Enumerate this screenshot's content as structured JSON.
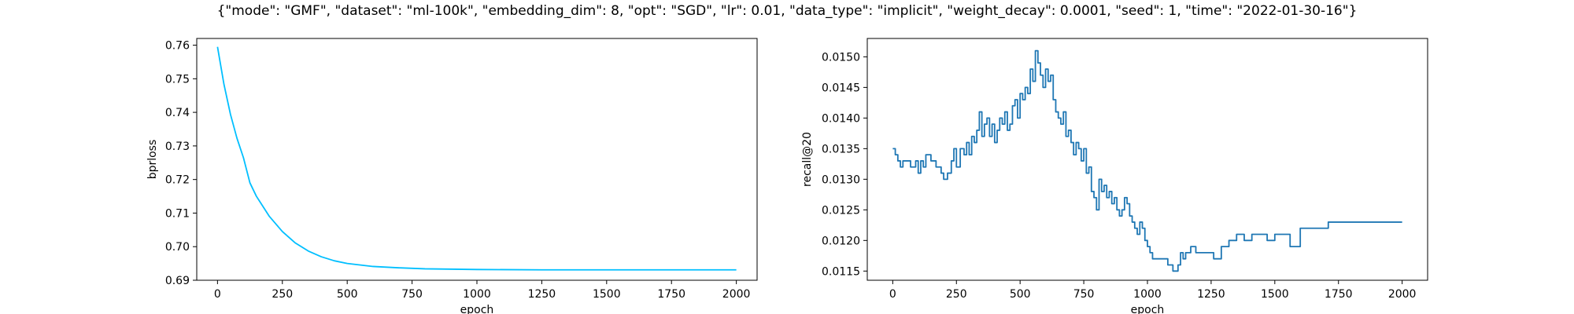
{
  "suptitle": "{\"mode\": \"GMF\", \"dataset\": \"ml-100k\", \"embedding_dim\": 8, \"opt\": \"SGD\", \"lr\": 0.01, \"data_type\": \"implicit\", \"weight_decay\": 0.0001, \"seed\": 1, \"time\": \"2022-01-30-16\"}",
  "chart_data": [
    {
      "type": "line",
      "title": "",
      "xlabel": "epoch",
      "ylabel": "bprloss",
      "xlim": [
        -80,
        2080
      ],
      "ylim": [
        0.69,
        0.762
      ],
      "xticks": [
        0,
        250,
        500,
        750,
        1000,
        1250,
        1500,
        1750,
        2000
      ],
      "xtick_labels": [
        "0",
        "250",
        "500",
        "750",
        "1000",
        "1250",
        "1500",
        "1750",
        "2000"
      ],
      "yticks": [
        0.69,
        0.7,
        0.71,
        0.72,
        0.73,
        0.74,
        0.75,
        0.76
      ],
      "ytick_labels": [
        "0.69",
        "0.70",
        "0.71",
        "0.72",
        "0.73",
        "0.74",
        "0.75",
        "0.76"
      ],
      "grid": false,
      "series": [
        {
          "name": "bprloss",
          "color": "#00bfff",
          "x": [
            0,
            25,
            50,
            75,
            100,
            125,
            150,
            200,
            250,
            300,
            350,
            400,
            450,
            500,
            600,
            700,
            800,
            1000,
            1250,
            1500,
            1750,
            2000
          ],
          "y": [
            0.7595,
            0.7483,
            0.7394,
            0.7323,
            0.7265,
            0.719,
            0.715,
            0.709,
            0.7045,
            0.7011,
            0.6987,
            0.697,
            0.6958,
            0.695,
            0.6941,
            0.6937,
            0.6934,
            0.6932,
            0.6931,
            0.6931,
            0.6931,
            0.6931
          ]
        }
      ]
    },
    {
      "type": "line",
      "title": "",
      "xlabel": "epoch",
      "ylabel": "recall@20",
      "xlim": [
        -100,
        2100
      ],
      "ylim": [
        0.01135,
        0.0153
      ],
      "xticks": [
        0,
        250,
        500,
        750,
        1000,
        1250,
        1500,
        1750,
        2000
      ],
      "xtick_labels": [
        "0",
        "250",
        "500",
        "750",
        "1000",
        "1250",
        "1500",
        "1750",
        "2000"
      ],
      "yticks": [
        0.0115,
        0.012,
        0.0125,
        0.013,
        0.0135,
        0.014,
        0.0145,
        0.015
      ],
      "ytick_labels": [
        "0.0115",
        "0.0120",
        "0.0125",
        "0.0130",
        "0.0135",
        "0.0140",
        "0.0145",
        "0.0150"
      ],
      "grid": false,
      "series": [
        {
          "name": "recall@20",
          "color": "#1f77b4",
          "x": [
            0,
            10,
            20,
            30,
            40,
            55,
            70,
            90,
            100,
            110,
            120,
            130,
            150,
            170,
            190,
            200,
            215,
            230,
            240,
            250,
            265,
            280,
            290,
            300,
            310,
            320,
            330,
            340,
            350,
            360,
            370,
            380,
            390,
            400,
            410,
            420,
            430,
            440,
            450,
            460,
            470,
            480,
            490,
            500,
            510,
            520,
            530,
            540,
            550,
            560,
            570,
            580,
            590,
            600,
            610,
            620,
            630,
            640,
            650,
            660,
            670,
            680,
            690,
            700,
            710,
            720,
            730,
            740,
            750,
            760,
            770,
            780,
            790,
            800,
            810,
            820,
            830,
            840,
            850,
            860,
            870,
            880,
            890,
            900,
            910,
            920,
            930,
            940,
            950,
            960,
            970,
            980,
            990,
            1000,
            1010,
            1020,
            1030,
            1040,
            1060,
            1080,
            1100,
            1120,
            1130,
            1140,
            1150,
            1170,
            1190,
            1200,
            1230,
            1260,
            1290,
            1320,
            1350,
            1380,
            1410,
            1440,
            1470,
            1500,
            1530,
            1550,
            1560,
            1600,
            1650,
            1700,
            1710,
            1800,
            1900,
            2000
          ],
          "y": [
            0.0135,
            0.0134,
            0.0133,
            0.0132,
            0.0133,
            0.0133,
            0.0132,
            0.0133,
            0.0131,
            0.0133,
            0.0132,
            0.0134,
            0.0133,
            0.0132,
            0.0131,
            0.013,
            0.0131,
            0.0133,
            0.0135,
            0.0132,
            0.0135,
            0.0134,
            0.0136,
            0.0134,
            0.0137,
            0.0136,
            0.0138,
            0.0141,
            0.0137,
            0.0139,
            0.014,
            0.0137,
            0.0139,
            0.0136,
            0.0138,
            0.014,
            0.0139,
            0.0141,
            0.0138,
            0.0139,
            0.0142,
            0.0143,
            0.014,
            0.0144,
            0.0143,
            0.0145,
            0.0144,
            0.0148,
            0.0146,
            0.0151,
            0.0149,
            0.0147,
            0.0145,
            0.0148,
            0.0146,
            0.0147,
            0.0143,
            0.0141,
            0.014,
            0.0139,
            0.0141,
            0.0137,
            0.0138,
            0.0136,
            0.0134,
            0.0136,
            0.0135,
            0.0133,
            0.0135,
            0.0131,
            0.0132,
            0.0128,
            0.0127,
            0.0125,
            0.013,
            0.0128,
            0.0129,
            0.0127,
            0.0128,
            0.0126,
            0.0127,
            0.0125,
            0.0124,
            0.0125,
            0.0127,
            0.0126,
            0.0124,
            0.0123,
            0.0122,
            0.0121,
            0.0123,
            0.0122,
            0.012,
            0.0119,
            0.0118,
            0.0117,
            0.0117,
            0.0117,
            0.0117,
            0.0116,
            0.0115,
            0.0116,
            0.0118,
            0.0117,
            0.0118,
            0.0119,
            0.0118,
            0.0118,
            0.0118,
            0.0117,
            0.0119,
            0.012,
            0.0121,
            0.012,
            0.0121,
            0.0121,
            0.012,
            0.0121,
            0.0121,
            0.0121,
            0.0119,
            0.0122,
            0.0122,
            0.0122,
            0.0123,
            0.0123,
            0.0123,
            0.0123
          ]
        }
      ]
    }
  ]
}
